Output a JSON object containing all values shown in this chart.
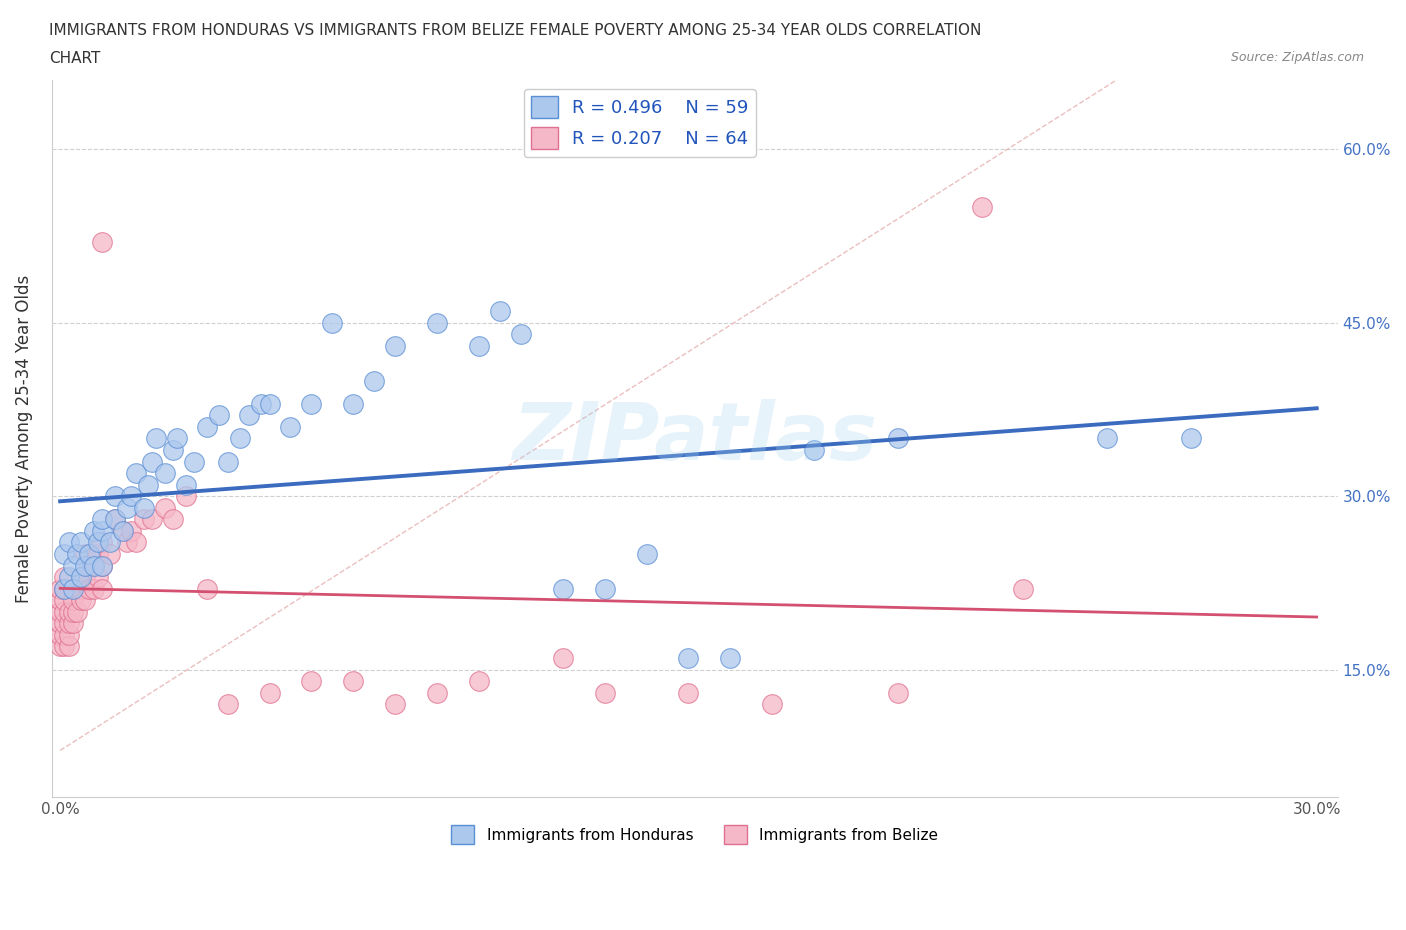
{
  "title_line1": "IMMIGRANTS FROM HONDURAS VS IMMIGRANTS FROM BELIZE FEMALE POVERTY AMONG 25-34 YEAR OLDS CORRELATION",
  "title_line2": "CHART",
  "source": "Source: ZipAtlas.com",
  "ylabel": "Female Poverty Among 25-34 Year Olds",
  "xlim": [
    -0.002,
    0.305
  ],
  "ylim": [
    0.04,
    0.66
  ],
  "xticks": [
    0.0,
    0.05,
    0.1,
    0.15,
    0.2,
    0.25,
    0.3
  ],
  "xticklabels": [
    "0.0%",
    "",
    "",
    "",
    "",
    "",
    "30.0%"
  ],
  "yticks": [
    0.15,
    0.3,
    0.45,
    0.6
  ],
  "ytick_labels": [
    "15.0%",
    "30.0%",
    "45.0%",
    "60.0%"
  ],
  "R_honduras": 0.496,
  "N_honduras": 59,
  "R_belize": 0.207,
  "N_belize": 64,
  "color_honduras": "#adc8ed",
  "color_honduras_edge": "#5b8fd4",
  "color_honduras_line": "#3a6bbf",
  "color_belize": "#f5b8c8",
  "color_belize_edge": "#e07090",
  "color_belize_line": "#d45070",
  "color_diag": "#e8b8b8",
  "watermark": "ZIPatlas",
  "honduras_x": [
    0.001,
    0.001,
    0.002,
    0.002,
    0.003,
    0.003,
    0.004,
    0.005,
    0.005,
    0.006,
    0.007,
    0.008,
    0.008,
    0.009,
    0.01,
    0.01,
    0.01,
    0.012,
    0.013,
    0.013,
    0.015,
    0.016,
    0.017,
    0.018,
    0.02,
    0.021,
    0.022,
    0.023,
    0.025,
    0.027,
    0.028,
    0.03,
    0.032,
    0.035,
    0.038,
    0.04,
    0.043,
    0.045,
    0.048,
    0.05,
    0.055,
    0.06,
    0.065,
    0.07,
    0.075,
    0.08,
    0.09,
    0.1,
    0.105,
    0.11,
    0.12,
    0.13,
    0.14,
    0.15,
    0.16,
    0.18,
    0.2,
    0.25,
    0.27
  ],
  "honduras_y": [
    0.22,
    0.25,
    0.23,
    0.26,
    0.22,
    0.24,
    0.25,
    0.23,
    0.26,
    0.24,
    0.25,
    0.24,
    0.27,
    0.26,
    0.24,
    0.27,
    0.28,
    0.26,
    0.28,
    0.3,
    0.27,
    0.29,
    0.3,
    0.32,
    0.29,
    0.31,
    0.33,
    0.35,
    0.32,
    0.34,
    0.35,
    0.31,
    0.33,
    0.36,
    0.37,
    0.33,
    0.35,
    0.37,
    0.38,
    0.38,
    0.36,
    0.38,
    0.45,
    0.38,
    0.4,
    0.43,
    0.45,
    0.43,
    0.46,
    0.44,
    0.22,
    0.22,
    0.25,
    0.16,
    0.16,
    0.34,
    0.35,
    0.35,
    0.35
  ],
  "belize_x": [
    0.0,
    0.0,
    0.0,
    0.0,
    0.0,
    0.0,
    0.001,
    0.001,
    0.001,
    0.001,
    0.001,
    0.001,
    0.001,
    0.002,
    0.002,
    0.002,
    0.002,
    0.003,
    0.003,
    0.003,
    0.004,
    0.004,
    0.005,
    0.005,
    0.005,
    0.006,
    0.006,
    0.006,
    0.007,
    0.007,
    0.008,
    0.008,
    0.009,
    0.009,
    0.01,
    0.01,
    0.01,
    0.012,
    0.013,
    0.015,
    0.016,
    0.017,
    0.018,
    0.02,
    0.022,
    0.025,
    0.027,
    0.03,
    0.035,
    0.04,
    0.05,
    0.06,
    0.07,
    0.08,
    0.09,
    0.1,
    0.12,
    0.13,
    0.15,
    0.17,
    0.2,
    0.22,
    0.23,
    0.01
  ],
  "belize_y": [
    0.17,
    0.18,
    0.19,
    0.2,
    0.21,
    0.22,
    0.17,
    0.18,
    0.19,
    0.2,
    0.21,
    0.22,
    0.23,
    0.17,
    0.18,
    0.19,
    0.2,
    0.19,
    0.2,
    0.21,
    0.2,
    0.22,
    0.21,
    0.22,
    0.23,
    0.21,
    0.23,
    0.25,
    0.22,
    0.24,
    0.22,
    0.24,
    0.23,
    0.25,
    0.22,
    0.24,
    0.26,
    0.25,
    0.28,
    0.27,
    0.26,
    0.27,
    0.26,
    0.28,
    0.28,
    0.29,
    0.28,
    0.3,
    0.22,
    0.12,
    0.13,
    0.14,
    0.14,
    0.12,
    0.13,
    0.14,
    0.16,
    0.13,
    0.13,
    0.12,
    0.13,
    0.55,
    0.22,
    0.52
  ]
}
